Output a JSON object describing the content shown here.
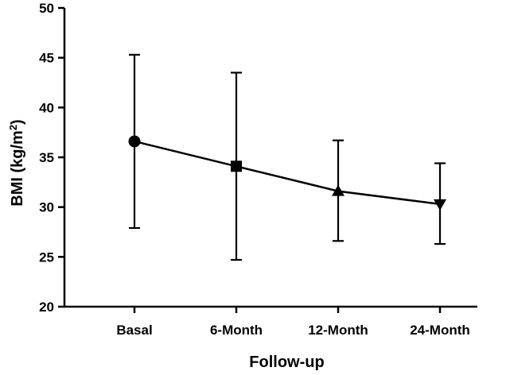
{
  "chart_data": {
    "type": "line",
    "title": "",
    "xlabel": "Follow-up",
    "ylabel": {
      "prefix": "BMI (kg/m",
      "superscript": "2",
      "suffix": ")"
    },
    "categories": [
      "Basal",
      "6-Month",
      "12-Month",
      "24-Month"
    ],
    "series": [
      {
        "name": "BMI",
        "values": [
          36.6,
          34.1,
          31.6,
          30.3
        ],
        "error_upper": [
          45.3,
          43.5,
          36.7,
          34.4
        ],
        "error_lower": [
          27.9,
          24.7,
          26.6,
          26.3
        ],
        "markers": [
          "circle",
          "square",
          "triangle-up",
          "triangle-down"
        ]
      }
    ],
    "ylim": [
      20,
      50
    ],
    "yticks": [
      20,
      25,
      30,
      35,
      40,
      45,
      50
    ],
    "grid": false,
    "legend": "none",
    "colors": {
      "line": "#000000",
      "marker": "#000000",
      "axis": "#000000"
    }
  }
}
